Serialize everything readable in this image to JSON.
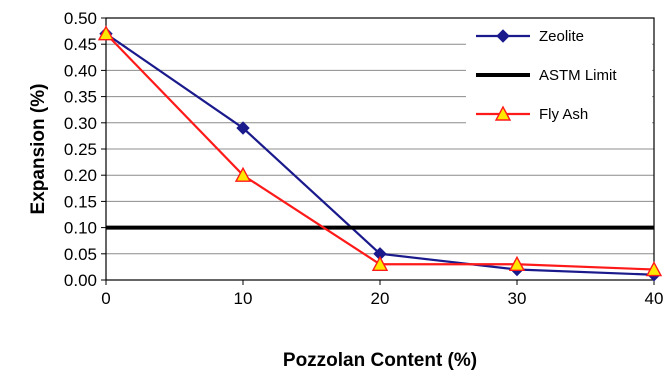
{
  "chart_data": {
    "type": "line",
    "xlabel": "Pozzolan Content (%)",
    "ylabel": "Expansion (%)",
    "xlim": [
      0,
      40
    ],
    "ylim": [
      0,
      0.5
    ],
    "x_ticks": [
      "0",
      "10",
      "20",
      "30",
      "40"
    ],
    "y_ticks": [
      "0.00",
      "0.05",
      "0.10",
      "0.15",
      "0.20",
      "0.25",
      "0.30",
      "0.35",
      "0.40",
      "0.45",
      "0.50"
    ],
    "grid": "horizontal",
    "legend_position": "top-right",
    "series": [
      {
        "name": "Zeolite",
        "marker": "diamond",
        "color": "#1a1a8c",
        "marker_color": "#1a1a8c",
        "x": [
          0,
          10,
          20,
          30,
          40
        ],
        "values": [
          0.47,
          0.29,
          0.05,
          0.02,
          0.01
        ]
      },
      {
        "name": "ASTM  Limit",
        "marker": "none",
        "color": "#000000",
        "x": [
          0,
          40
        ],
        "values": [
          0.1,
          0.1
        ]
      },
      {
        "name": "Fly Ash",
        "marker": "triangle",
        "color": "#ff1a1a",
        "marker_color": "#ffe800",
        "x": [
          0,
          10,
          20,
          30,
          40
        ],
        "values": [
          0.47,
          0.2,
          0.03,
          0.03,
          0.02
        ]
      }
    ]
  }
}
